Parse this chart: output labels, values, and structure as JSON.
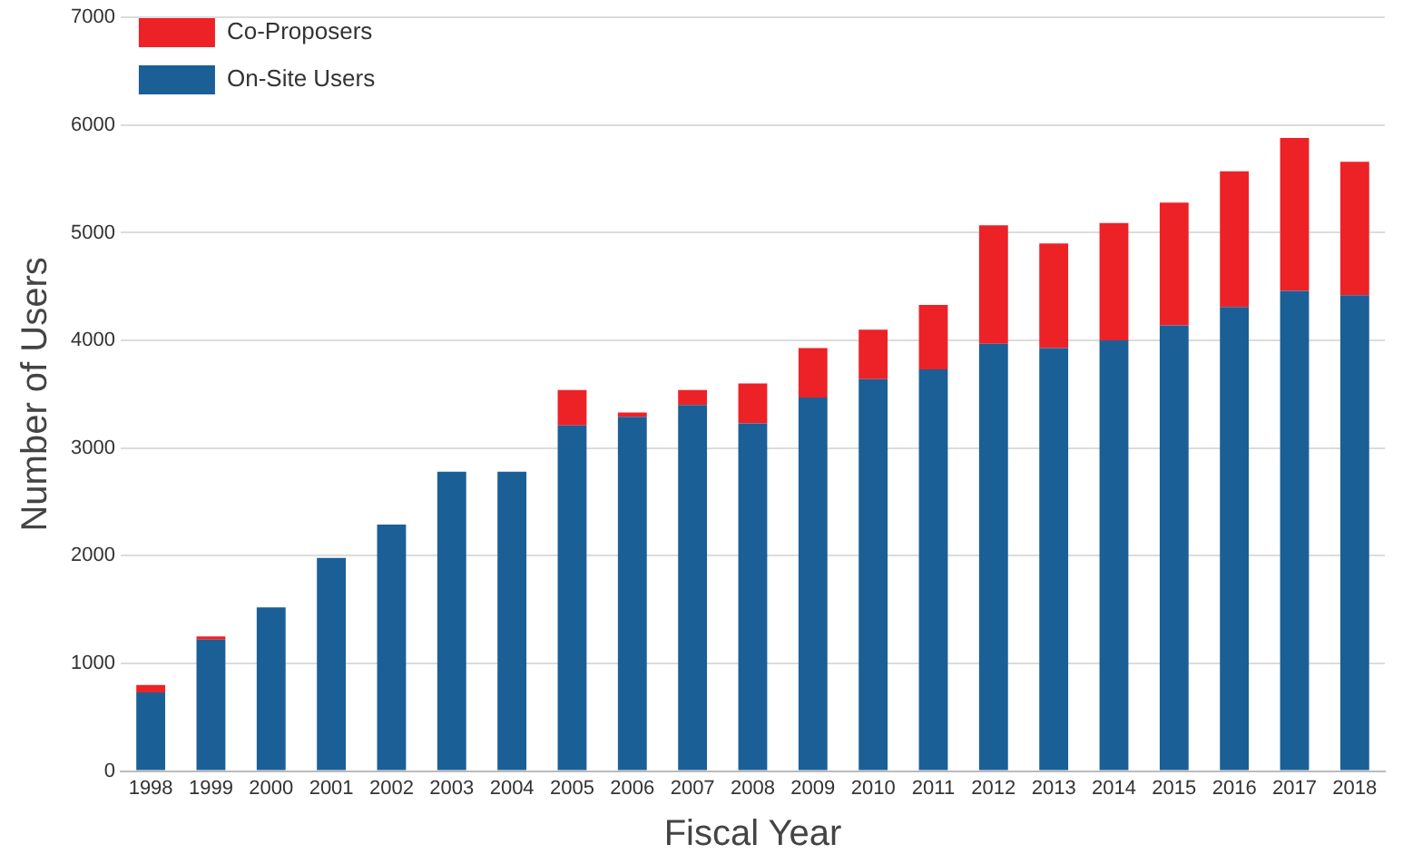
{
  "chart_data": {
    "type": "bar",
    "xlabel": "Fiscal Year",
    "ylabel": "Number of Users",
    "stacked": true,
    "categories": [
      "1998",
      "1999",
      "2000",
      "2001",
      "2002",
      "2003",
      "2004",
      "2005",
      "2006",
      "2007",
      "2008",
      "2009",
      "2010",
      "2011",
      "2012",
      "2013",
      "2014",
      "2015",
      "2016",
      "2017",
      "2018"
    ],
    "series": [
      {
        "name": "On-Site Users",
        "color": "#1b5f97",
        "values": [
          730,
          1220,
          1520,
          1980,
          2290,
          2780,
          2780,
          3210,
          3290,
          3400,
          3230,
          3470,
          3640,
          3730,
          3970,
          3930,
          4000,
          4140,
          4310,
          4460,
          4420
        ]
      },
      {
        "name": "Co-Proposers",
        "color": "#ed2227",
        "values": [
          70,
          30,
          0,
          0,
          0,
          0,
          0,
          330,
          40,
          140,
          370,
          460,
          460,
          600,
          1100,
          970,
          1090,
          1140,
          1260,
          1420,
          1240
        ]
      }
    ],
    "ylim": [
      0,
      7000
    ],
    "yticks": [
      0,
      1000,
      2000,
      3000,
      4000,
      5000,
      6000,
      7000
    ],
    "grid": "y",
    "legend": "top left"
  }
}
